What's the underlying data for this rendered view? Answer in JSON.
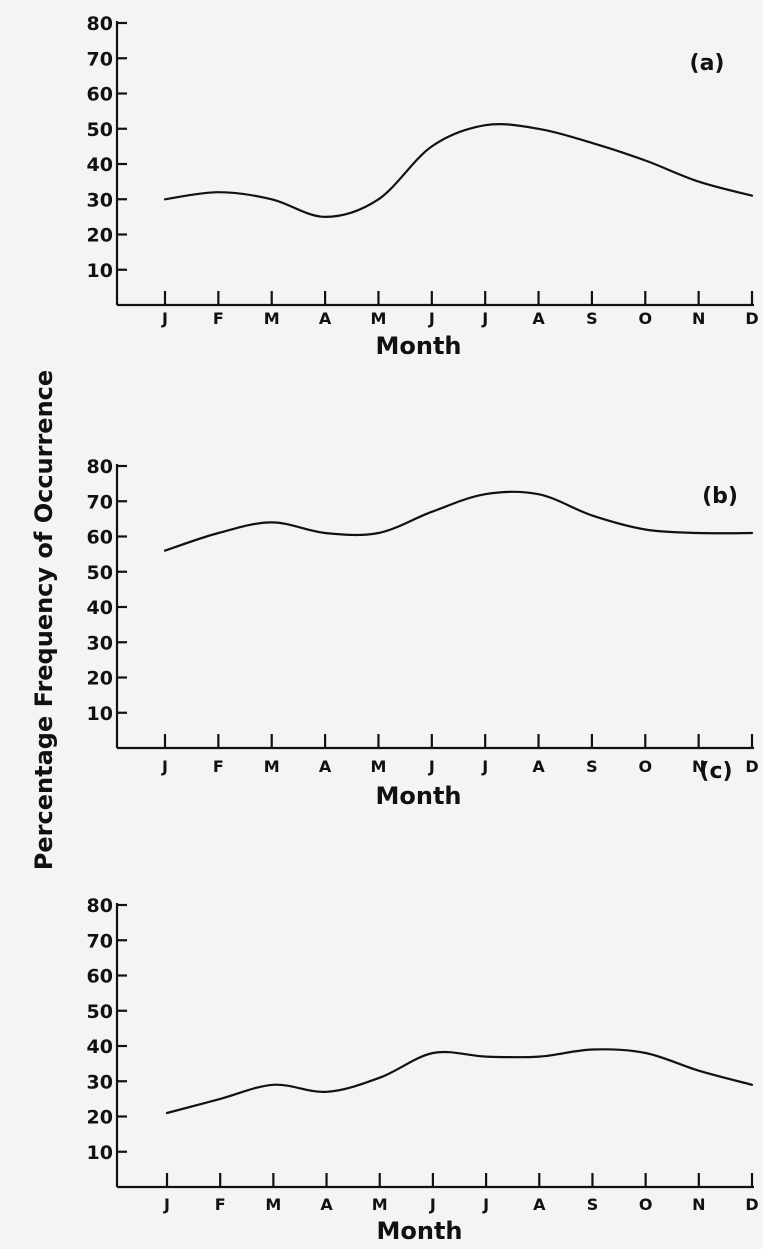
{
  "ylabel": "Percentage Frequency of Occurrence",
  "colors": {
    "ink": "#111111",
    "paper": "#f4f4f2"
  },
  "chart_data": [
    {
      "type": "line",
      "panel_label": "(a)",
      "xlabel": "Month",
      "categories": [
        "J",
        "F",
        "M",
        "A",
        "M",
        "J",
        "J",
        "A",
        "S",
        "O",
        "N",
        "D"
      ],
      "yticks": [
        "80",
        "70",
        "60",
        "50",
        "40",
        "30",
        "20",
        "10"
      ],
      "ylim": [
        0,
        80
      ],
      "grid": false,
      "series": [
        {
          "values": [
            30,
            32,
            30,
            25,
            30,
            45,
            51,
            50,
            46,
            41,
            35,
            31
          ]
        }
      ]
    },
    {
      "type": "line",
      "panel_label": "(b)",
      "xlabel": "Month",
      "categories": [
        "J",
        "F",
        "M",
        "A",
        "M",
        "J",
        "J",
        "A",
        "S",
        "O",
        "N",
        "D"
      ],
      "yticks": [
        "80",
        "70",
        "60",
        "50",
        "40",
        "30",
        "20",
        "10"
      ],
      "ylim": [
        0,
        80
      ],
      "grid": false,
      "series": [
        {
          "values": [
            56,
            61,
            64,
            61,
            61,
            67,
            72,
            72,
            66,
            62,
            61,
            61
          ]
        }
      ]
    },
    {
      "type": "line",
      "panel_label": "(c)",
      "xlabel": "Month",
      "categories": [
        "J",
        "F",
        "M",
        "A",
        "M",
        "J",
        "J",
        "A",
        "S",
        "O",
        "N",
        "D"
      ],
      "yticks": [
        "80",
        "70",
        "60",
        "50",
        "40",
        "30",
        "20",
        "10"
      ],
      "ylim": [
        0,
        80
      ],
      "grid": false,
      "series": [
        {
          "values": [
            21,
            25,
            29,
            27,
            31,
            38,
            37,
            37,
            39,
            38,
            33,
            29
          ]
        }
      ]
    }
  ]
}
